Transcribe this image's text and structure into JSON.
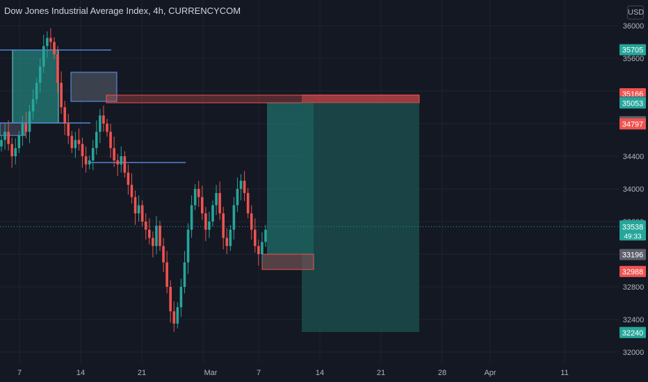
{
  "header": {
    "title": "Dow Jones Industrial Average Index, 4h, CURRENCYCOM",
    "currency": "USD"
  },
  "colors": {
    "background": "#141823",
    "up": "#26a69a",
    "down": "#ef5350",
    "zone_blue": "#2962ff",
    "axis_text": "#b2b5be"
  },
  "chart_data": {
    "type": "candlestick",
    "title": "Dow Jones Industrial Average Index, 4h, CURRENCYCOM",
    "y_ticks": [
      36000,
      35600,
      34400,
      34000,
      33600,
      32800,
      32400,
      32000
    ],
    "ylim": [
      31800,
      36200
    ],
    "x_ticks": [
      "7",
      "14",
      "21",
      "Mar",
      "7",
      "14",
      "21",
      "28",
      "Apr",
      "11"
    ],
    "current_price": {
      "value": 33538,
      "countdown": "49:33"
    },
    "price_labels": [
      {
        "value": "35705",
        "tone": "green"
      },
      {
        "value": "35166",
        "tone": "red"
      },
      {
        "value": "35068",
        "tone": "gray"
      },
      {
        "value": "35053",
        "tone": "green"
      },
      {
        "value": "34823",
        "tone": "gray"
      },
      {
        "value": "34797",
        "tone": "red"
      },
      {
        "value": "33196",
        "tone": "gray"
      },
      {
        "value": "32988",
        "tone": "red"
      },
      {
        "value": "32240",
        "tone": "green"
      }
    ],
    "candles_close_path": [
      34600,
      34700,
      34550,
      34400,
      34500,
      34650,
      34800,
      34700,
      34950,
      35100,
      35300,
      35500,
      35750,
      35850,
      35800,
      35650,
      35300,
      35000,
      34800,
      34650,
      34500,
      34600,
      34550,
      34400,
      34300,
      34350,
      34500,
      34700,
      34900,
      34800,
      34700,
      34500,
      34350,
      34300,
      34400,
      34200,
      34050,
      33900,
      33700,
      33800,
      33600,
      33500,
      33400,
      33300,
      33550,
      33300,
      33100,
      32800,
      32500,
      32350,
      32550,
      32800,
      33100,
      33500,
      33800,
      34000,
      33900,
      33700,
      33500,
      33600,
      33800,
      33950,
      33700,
      33400,
      33300,
      33500,
      33800,
      34000,
      34100,
      33950,
      33700,
      33500,
      33300,
      33200,
      33350,
      33500
    ]
  }
}
